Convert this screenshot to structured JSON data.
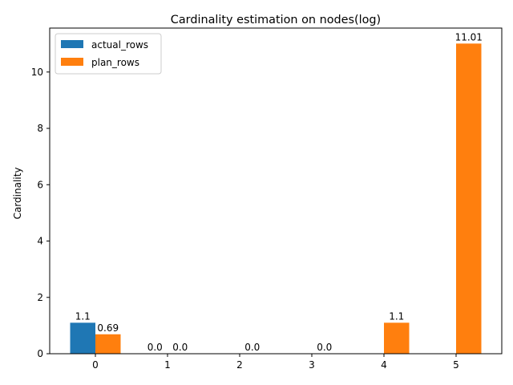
{
  "chart_data": {
    "type": "bar",
    "title": "Cardinality estimation on nodes(log)",
    "xlabel": "",
    "ylabel": "Cardinality",
    "categories": [
      "0",
      "1",
      "2",
      "3",
      "4",
      "5"
    ],
    "series": [
      {
        "name": "actual_rows",
        "color": "#1f77b4",
        "values": [
          1.1,
          0.0,
          null,
          null,
          null,
          null
        ],
        "labels": [
          "1.1",
          "0.0",
          "",
          "",
          "",
          ""
        ]
      },
      {
        "name": "plan_rows",
        "color": "#ff7f0e",
        "values": [
          0.69,
          0.0,
          0.0,
          0.0,
          1.1,
          11.01
        ],
        "labels": [
          "0.69",
          "0.0",
          "0.0",
          "0.0",
          "1.1",
          "11.01"
        ]
      }
    ],
    "ylim": [
      0,
      11.56
    ],
    "yticks": [
      0,
      2,
      4,
      6,
      8,
      10
    ],
    "grid": false,
    "legend": "top-left"
  }
}
